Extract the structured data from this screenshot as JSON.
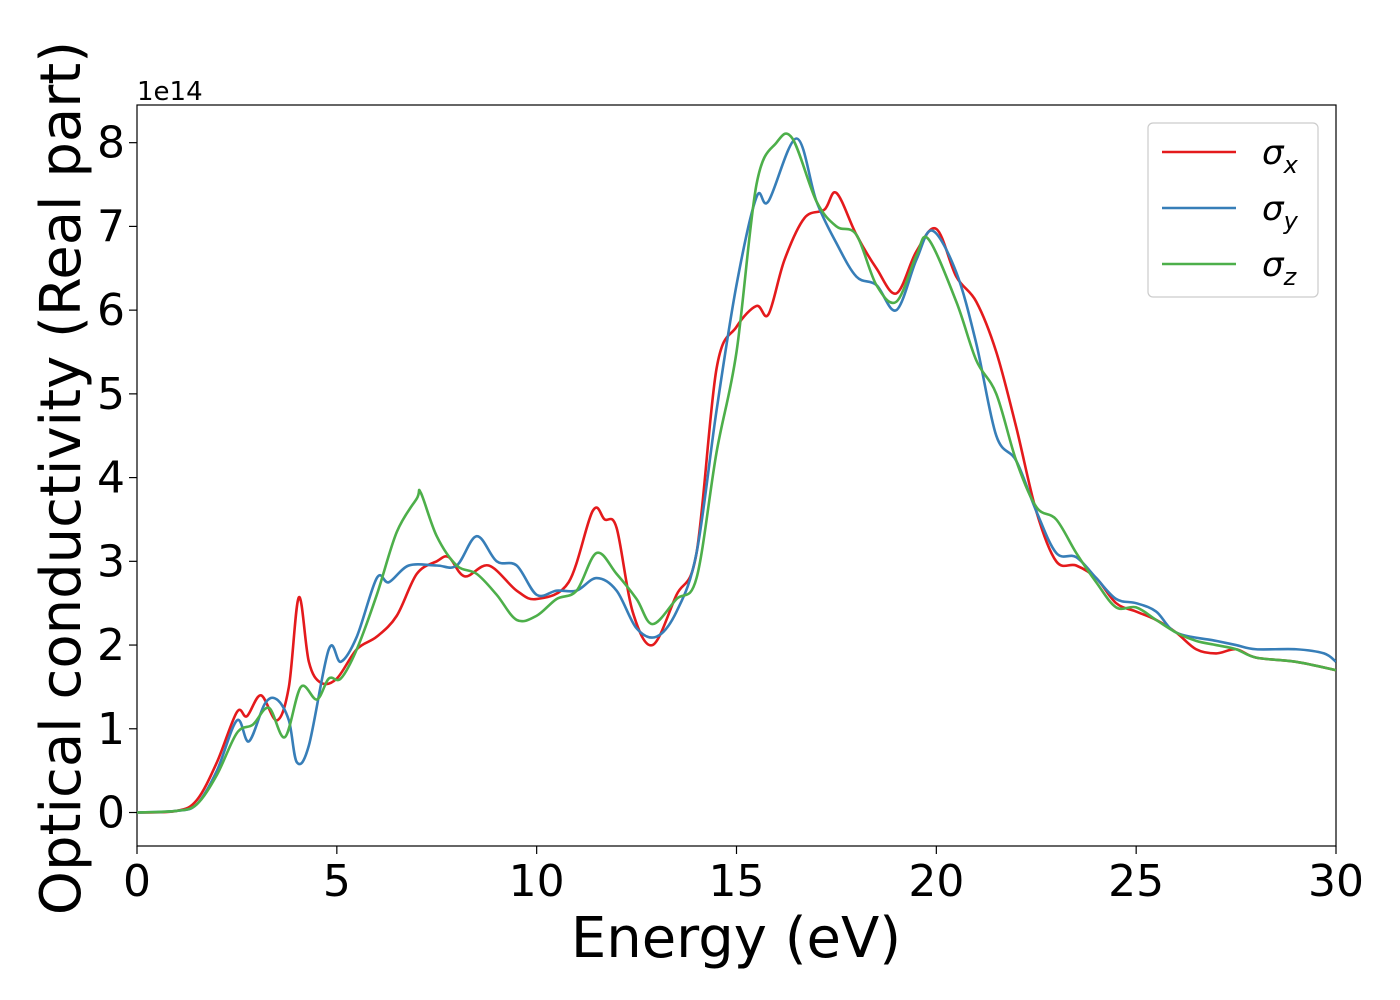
{
  "chart_data": {
    "type": "line",
    "title": "",
    "xlabel": "Energy (eV)",
    "ylabel": "Optical conductivity (Real part)",
    "y_offset_label": "1e14",
    "xlim": [
      0,
      30
    ],
    "ylim": [
      -0.4,
      8.45
    ],
    "x_ticks": [
      0,
      5,
      10,
      15,
      20,
      25,
      30
    ],
    "x_tick_labels": [
      "0",
      "5",
      "10",
      "15",
      "20",
      "25",
      "30"
    ],
    "y_ticks": [
      0,
      1,
      2,
      3,
      4,
      5,
      6,
      7,
      8
    ],
    "y_tick_labels": [
      "0",
      "1",
      "2",
      "3",
      "4",
      "5",
      "6",
      "7",
      "8"
    ],
    "grid": false,
    "legend_position": "top-right",
    "series": [
      {
        "name": "σ",
        "subscript": "x",
        "color": "#e41a1c",
        "points": [
          [
            0,
            0
          ],
          [
            1,
            0.02
          ],
          [
            1.5,
            0.15
          ],
          [
            2,
            0.6
          ],
          [
            2.5,
            1.2
          ],
          [
            2.75,
            1.15
          ],
          [
            3.1,
            1.4
          ],
          [
            3.5,
            1.1
          ],
          [
            3.8,
            1.5
          ],
          [
            4.05,
            2.57
          ],
          [
            4.3,
            1.8
          ],
          [
            4.6,
            1.55
          ],
          [
            5,
            1.6
          ],
          [
            5.5,
            1.95
          ],
          [
            6,
            2.1
          ],
          [
            6.5,
            2.35
          ],
          [
            7,
            2.85
          ],
          [
            7.5,
            3.0
          ],
          [
            7.8,
            3.05
          ],
          [
            8.2,
            2.82
          ],
          [
            8.8,
            2.95
          ],
          [
            9.5,
            2.65
          ],
          [
            10,
            2.55
          ],
          [
            10.8,
            2.75
          ],
          [
            11.4,
            3.6
          ],
          [
            11.7,
            3.5
          ],
          [
            12,
            3.4
          ],
          [
            12.4,
            2.4
          ],
          [
            12.9,
            2.0
          ],
          [
            13.5,
            2.6
          ],
          [
            14,
            3.1
          ],
          [
            14.5,
            5.3
          ],
          [
            15,
            5.8
          ],
          [
            15.5,
            6.05
          ],
          [
            15.8,
            5.95
          ],
          [
            16.2,
            6.6
          ],
          [
            16.7,
            7.1
          ],
          [
            17.2,
            7.2
          ],
          [
            17.5,
            7.4
          ],
          [
            18,
            6.9
          ],
          [
            18.5,
            6.5
          ],
          [
            19,
            6.2
          ],
          [
            19.5,
            6.7
          ],
          [
            20,
            6.97
          ],
          [
            20.5,
            6.4
          ],
          [
            21,
            6.1
          ],
          [
            21.5,
            5.5
          ],
          [
            22,
            4.6
          ],
          [
            22.5,
            3.6
          ],
          [
            23,
            3.0
          ],
          [
            23.5,
            2.95
          ],
          [
            24,
            2.8
          ],
          [
            24.5,
            2.5
          ],
          [
            25,
            2.4
          ],
          [
            25.5,
            2.3
          ],
          [
            26,
            2.15
          ],
          [
            26.5,
            1.95
          ],
          [
            27,
            1.9
          ],
          [
            27.5,
            1.95
          ],
          [
            28,
            1.85
          ],
          [
            29,
            1.8
          ],
          [
            30,
            1.7
          ]
        ]
      },
      {
        "name": "σ",
        "subscript": "y",
        "color": "#377eb8",
        "points": [
          [
            0,
            0
          ],
          [
            1,
            0.02
          ],
          [
            1.5,
            0.1
          ],
          [
            2,
            0.5
          ],
          [
            2.5,
            1.1
          ],
          [
            2.8,
            0.85
          ],
          [
            3.2,
            1.3
          ],
          [
            3.5,
            1.35
          ],
          [
            3.8,
            1.1
          ],
          [
            4.0,
            0.6
          ],
          [
            4.3,
            0.8
          ],
          [
            4.8,
            1.95
          ],
          [
            5.1,
            1.8
          ],
          [
            5.5,
            2.1
          ],
          [
            6,
            2.8
          ],
          [
            6.3,
            2.75
          ],
          [
            6.8,
            2.95
          ],
          [
            7.5,
            2.95
          ],
          [
            8,
            2.95
          ],
          [
            8.5,
            3.3
          ],
          [
            9,
            3.0
          ],
          [
            9.5,
            2.95
          ],
          [
            10,
            2.6
          ],
          [
            10.5,
            2.65
          ],
          [
            11,
            2.65
          ],
          [
            11.5,
            2.8
          ],
          [
            12,
            2.65
          ],
          [
            12.5,
            2.2
          ],
          [
            13,
            2.1
          ],
          [
            13.5,
            2.4
          ],
          [
            14,
            3.1
          ],
          [
            14.5,
            4.8
          ],
          [
            15,
            6.3
          ],
          [
            15.5,
            7.35
          ],
          [
            15.8,
            7.3
          ],
          [
            16.5,
            8.05
          ],
          [
            17,
            7.3
          ],
          [
            17.5,
            6.8
          ],
          [
            18,
            6.4
          ],
          [
            18.5,
            6.3
          ],
          [
            19,
            6.0
          ],
          [
            19.5,
            6.6
          ],
          [
            19.9,
            6.95
          ],
          [
            20.5,
            6.45
          ],
          [
            21,
            5.6
          ],
          [
            21.5,
            4.5
          ],
          [
            22,
            4.2
          ],
          [
            22.5,
            3.6
          ],
          [
            23,
            3.1
          ],
          [
            23.5,
            3.05
          ],
          [
            24,
            2.8
          ],
          [
            24.5,
            2.55
          ],
          [
            25,
            2.5
          ],
          [
            25.5,
            2.4
          ],
          [
            26,
            2.15
          ],
          [
            27,
            2.05
          ],
          [
            27.5,
            2.0
          ],
          [
            28,
            1.95
          ],
          [
            29,
            1.95
          ],
          [
            29.7,
            1.9
          ],
          [
            30,
            1.8
          ]
        ]
      },
      {
        "name": "σ",
        "subscript": "z",
        "color": "#4daf4a",
        "points": [
          [
            0,
            0
          ],
          [
            1,
            0.02
          ],
          [
            1.5,
            0.1
          ],
          [
            2,
            0.45
          ],
          [
            2.5,
            0.95
          ],
          [
            2.9,
            1.05
          ],
          [
            3.3,
            1.25
          ],
          [
            3.7,
            0.9
          ],
          [
            4.1,
            1.5
          ],
          [
            4.5,
            1.35
          ],
          [
            4.8,
            1.6
          ],
          [
            5.1,
            1.6
          ],
          [
            5.5,
            1.95
          ],
          [
            6,
            2.6
          ],
          [
            6.5,
            3.35
          ],
          [
            7,
            3.75
          ],
          [
            7.1,
            3.82
          ],
          [
            7.5,
            3.3
          ],
          [
            8,
            2.95
          ],
          [
            8.5,
            2.85
          ],
          [
            9,
            2.6
          ],
          [
            9.5,
            2.3
          ],
          [
            10,
            2.35
          ],
          [
            10.5,
            2.55
          ],
          [
            11,
            2.65
          ],
          [
            11.5,
            3.1
          ],
          [
            12,
            2.85
          ],
          [
            12.5,
            2.55
          ],
          [
            12.9,
            2.25
          ],
          [
            13.5,
            2.55
          ],
          [
            14,
            2.8
          ],
          [
            14.5,
            4.3
          ],
          [
            15,
            5.5
          ],
          [
            15.5,
            7.5
          ],
          [
            16,
            8.0
          ],
          [
            16.4,
            8.05
          ],
          [
            17,
            7.3
          ],
          [
            17.5,
            7.0
          ],
          [
            18,
            6.9
          ],
          [
            18.5,
            6.3
          ],
          [
            19,
            6.1
          ],
          [
            19.5,
            6.65
          ],
          [
            19.8,
            6.85
          ],
          [
            20.5,
            6.1
          ],
          [
            21,
            5.4
          ],
          [
            21.5,
            5.0
          ],
          [
            22,
            4.2
          ],
          [
            22.5,
            3.65
          ],
          [
            23,
            3.5
          ],
          [
            23.5,
            3.1
          ],
          [
            24,
            2.75
          ],
          [
            24.5,
            2.45
          ],
          [
            25,
            2.45
          ],
          [
            25.5,
            2.3
          ],
          [
            26,
            2.15
          ],
          [
            26.5,
            2.05
          ],
          [
            27,
            2.0
          ],
          [
            27.5,
            1.95
          ],
          [
            28,
            1.85
          ],
          [
            29,
            1.8
          ],
          [
            30,
            1.7
          ]
        ]
      }
    ]
  }
}
